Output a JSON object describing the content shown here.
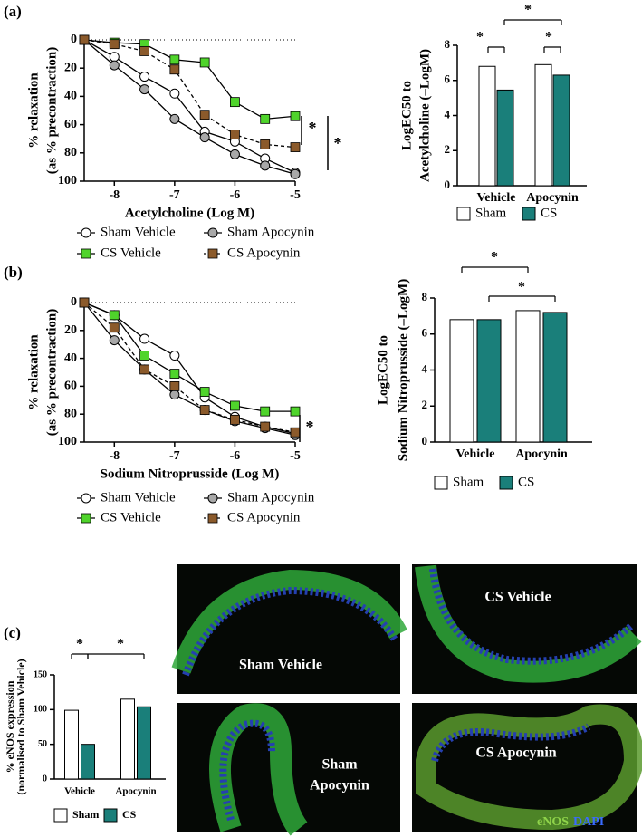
{
  "panel_labels": [
    "(a)",
    "(b)",
    "(c)"
  ],
  "chart_data": [
    {
      "type": "line",
      "xlabel": "Acetylcholine (Log M)",
      "ylabel": [
        "% relaxation",
        "(as % precontraction)"
      ],
      "x": [
        -8.5,
        -8,
        -7.5,
        -7,
        -6.5,
        -6,
        -5.5,
        -5
      ],
      "xlim": [
        -8.5,
        -5
      ],
      "xticks": [
        -8,
        -7,
        -6,
        -5
      ],
      "ylim": [
        0,
        100
      ],
      "yticks": [
        0,
        20,
        40,
        60,
        80,
        100
      ],
      "y_inverted": true,
      "series": [
        {
          "name": "Sham Vehicle",
          "color": "#ffffff",
          "marker": "circle",
          "line_style": "solid",
          "values": [
            0,
            12,
            26,
            38,
            65,
            72,
            84,
            94
          ]
        },
        {
          "name": "Sham Apocynin",
          "color": "#a8a8a8",
          "marker": "circle",
          "line_style": "solid",
          "values": [
            0,
            18,
            35,
            56,
            69,
            81,
            89,
            95
          ]
        },
        {
          "name": "CS Vehicle",
          "color": "#4fd42b",
          "marker": "square",
          "line_style": "solid",
          "values": [
            0,
            2,
            3,
            14,
            16,
            44,
            56,
            54
          ]
        },
        {
          "name": "CS Apocynin",
          "color": "#8b5a2b",
          "marker": "square",
          "line_style": "dashed",
          "values": [
            0,
            3,
            8,
            21,
            53,
            67,
            74,
            76
          ]
        }
      ],
      "annotations": [
        "*",
        "*"
      ]
    },
    {
      "type": "bar",
      "ylabel": [
        "LogEC50 to",
        "Acetylcholine (–LogM)"
      ],
      "categories": [
        "Vehicle",
        "Apocynin"
      ],
      "ylim": [
        0,
        8
      ],
      "yticks": [
        0,
        2,
        4,
        6,
        8
      ],
      "series": [
        {
          "name": "Sham",
          "color": "#ffffff",
          "values": [
            6.8,
            6.9
          ]
        },
        {
          "name": "CS",
          "color": "#1a7f7a",
          "values": [
            5.45,
            6.3
          ]
        }
      ],
      "annotations": [
        "*",
        "*",
        "*"
      ]
    },
    {
      "type": "line",
      "xlabel": "Sodium Nitroprusside (Log M)",
      "ylabel": [
        "% relaxation",
        "(as % precontraction)"
      ],
      "x": [
        -8.5,
        -8,
        -7.5,
        -7,
        -6.5,
        -6,
        -5.5,
        -5
      ],
      "xlim": [
        -8.5,
        -5
      ],
      "xticks": [
        -8,
        -7,
        -6,
        -5
      ],
      "ylim": [
        0,
        100
      ],
      "yticks": [
        0,
        20,
        40,
        60,
        80,
        100
      ],
      "y_inverted": true,
      "series": [
        {
          "name": "Sham Vehicle",
          "color": "#ffffff",
          "marker": "circle",
          "line_style": "solid",
          "values": [
            0,
            9,
            26,
            38,
            68,
            82,
            89,
            94
          ]
        },
        {
          "name": "Sham Apocynin",
          "color": "#a8a8a8",
          "marker": "circle",
          "line_style": "solid",
          "values": [
            0,
            27,
            48,
            66,
            77,
            85,
            90,
            95
          ]
        },
        {
          "name": "CS Vehicle",
          "color": "#4fd42b",
          "marker": "square",
          "line_style": "solid",
          "values": [
            0,
            9,
            38,
            51,
            64,
            74,
            78,
            78
          ]
        },
        {
          "name": "CS Apocynin",
          "color": "#8b5a2b",
          "marker": "square",
          "line_style": "dashed",
          "values": [
            0,
            18,
            48,
            60,
            77,
            84,
            89,
            93
          ]
        }
      ],
      "annotations": [
        "*"
      ]
    },
    {
      "type": "bar",
      "ylabel": [
        "LogEC50 to",
        "Sodium Nitroprusside (–LogM)"
      ],
      "categories": [
        "Vehicle",
        "Apocynin"
      ],
      "ylim": [
        0,
        8
      ],
      "yticks": [
        0,
        2,
        4,
        6,
        8
      ],
      "series": [
        {
          "name": "Sham",
          "color": "#ffffff",
          "values": [
            6.8,
            7.3
          ]
        },
        {
          "name": "CS",
          "color": "#1a7f7a",
          "values": [
            6.8,
            7.2
          ]
        }
      ],
      "annotations": [
        "*",
        "*"
      ]
    },
    {
      "type": "bar",
      "ylabel": [
        "% eNOS expression",
        "(normalised to Sham Vehicle)"
      ],
      "categories": [
        "Vehicle",
        "Apocynin"
      ],
      "ylim": [
        0,
        150
      ],
      "yticks": [
        0,
        50,
        100,
        150
      ],
      "series": [
        {
          "name": "Sham",
          "color": "#ffffff",
          "values": [
            99,
            115
          ]
        },
        {
          "name": "CS",
          "color": "#1a7f7a",
          "values": [
            50,
            104
          ]
        }
      ],
      "annotations": [
        "*",
        "*"
      ]
    }
  ],
  "images": [
    {
      "label": [
        "Sham Vehicle"
      ]
    },
    {
      "label": [
        "CS Vehicle"
      ]
    },
    {
      "label": [
        "Sham",
        "Apocynin"
      ]
    },
    {
      "label": [
        "CS Apocynin"
      ]
    }
  ],
  "image_legend": [
    "eNOS",
    "DAPI"
  ]
}
